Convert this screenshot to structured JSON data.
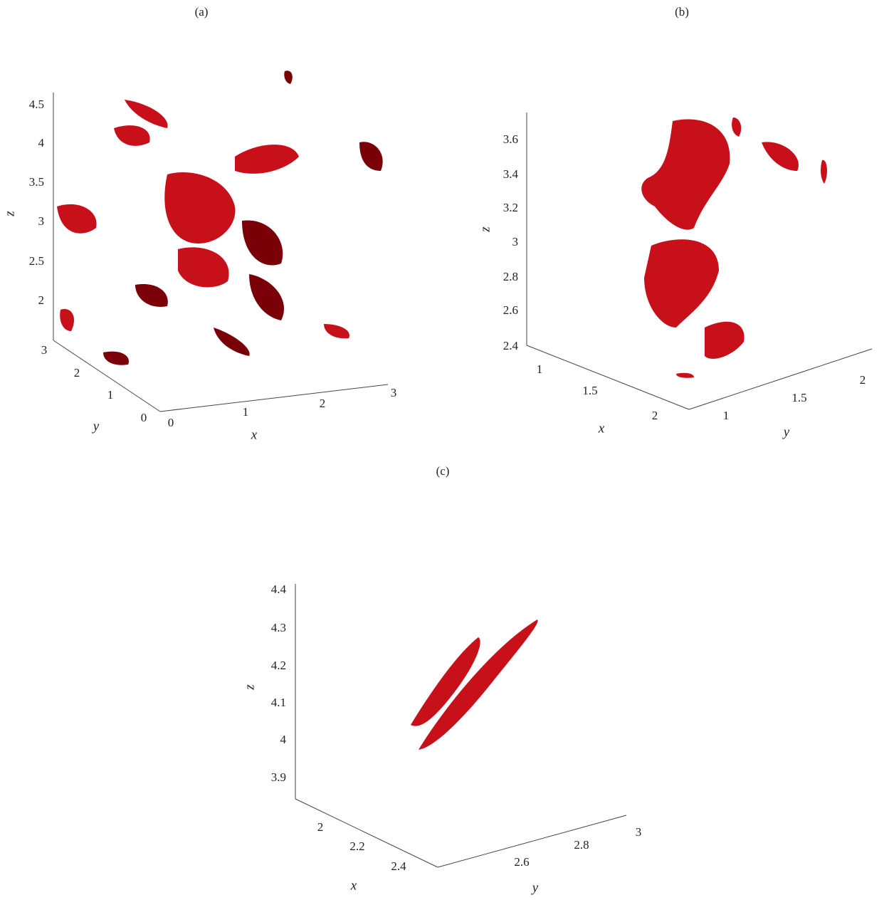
{
  "panels": [
    {
      "label": "(a)",
      "axes": {
        "x": {
          "label": "x",
          "ticks": [
            0,
            1,
            2,
            3
          ]
        },
        "y": {
          "label": "y",
          "ticks": [
            0,
            1,
            2,
            3
          ]
        },
        "z": {
          "label": "z",
          "ticks": [
            2,
            2.5,
            3,
            3.5,
            4,
            4.5
          ]
        }
      }
    },
    {
      "label": "(b)",
      "axes": {
        "x": {
          "label": "x",
          "ticks": [
            1,
            1.5,
            2
          ]
        },
        "y": {
          "label": "y",
          "ticks": [
            1,
            1.5,
            2
          ]
        },
        "z": {
          "label": "z",
          "ticks": [
            2.4,
            2.6,
            2.8,
            3,
            3.2,
            3.4,
            3.6
          ]
        }
      }
    },
    {
      "label": "(c)",
      "axes": {
        "x": {
          "label": "x",
          "ticks": [
            2,
            2.2,
            2.4
          ]
        },
        "y": {
          "label": "y",
          "ticks": [
            2.6,
            2.8,
            3
          ]
        },
        "z": {
          "label": "z",
          "ticks": [
            3.9,
            4,
            4.1,
            4.2,
            4.3,
            4.4
          ]
        }
      }
    }
  ]
}
